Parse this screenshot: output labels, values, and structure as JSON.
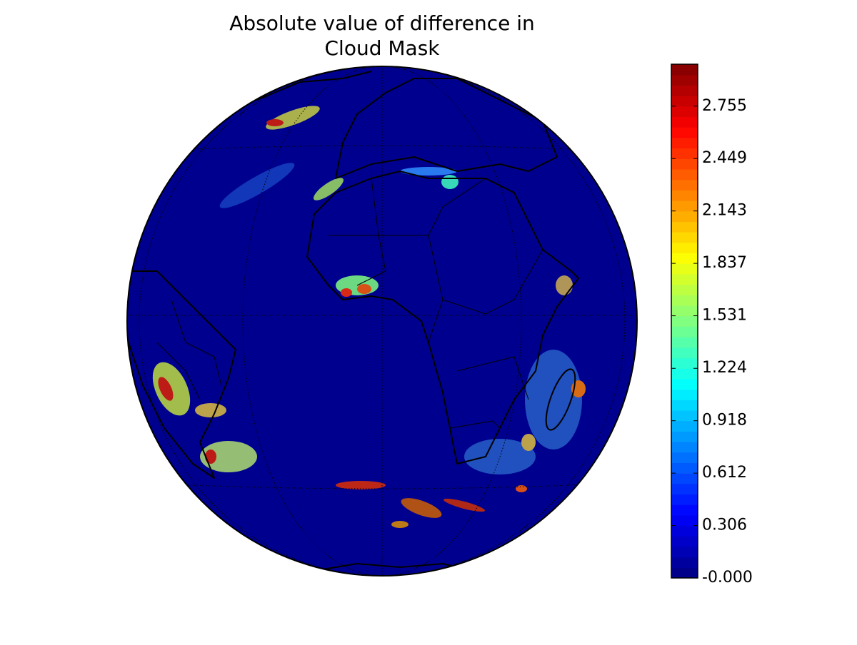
{
  "chart_data": {
    "type": "map",
    "title": [
      "Absolute value of difference in",
      "Cloud Mask"
    ],
    "colormap": "jet",
    "clim": [
      0,
      3
    ],
    "colorbar_ticks": [
      {
        "value": 0,
        "label": "-0.000"
      },
      0.306,
      0.612,
      0.918,
      1.224,
      1.531,
      1.837,
      2.143,
      2.449,
      2.755
    ]
  }
}
